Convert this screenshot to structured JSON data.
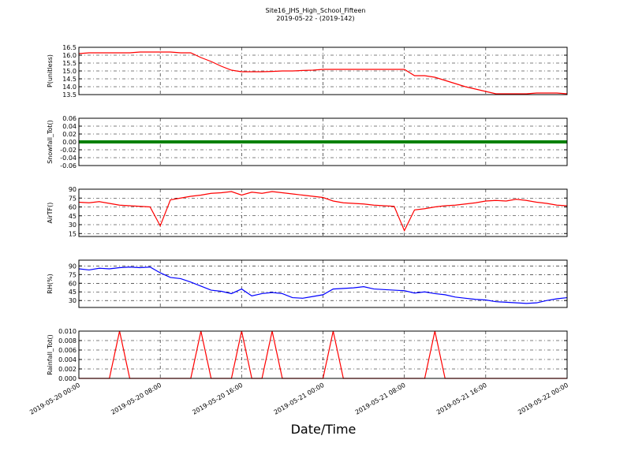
{
  "chart_data": {
    "type": "line",
    "title": "Site16_JHS_High_School_Fifteen",
    "subtitle": "2019-05-22 - (2019-142)",
    "x_label": "Date/Time",
    "grid": true,
    "x": [
      "2019-05-20 00:00",
      "2019-05-20 01:00",
      "2019-05-20 02:00",
      "2019-05-20 03:00",
      "2019-05-20 04:00",
      "2019-05-20 05:00",
      "2019-05-20 06:00",
      "2019-05-20 07:00",
      "2019-05-20 08:00",
      "2019-05-20 09:00",
      "2019-05-20 10:00",
      "2019-05-20 11:00",
      "2019-05-20 12:00",
      "2019-05-20 13:00",
      "2019-05-20 14:00",
      "2019-05-20 15:00",
      "2019-05-20 16:00",
      "2019-05-20 17:00",
      "2019-05-20 18:00",
      "2019-05-20 19:00",
      "2019-05-20 20:00",
      "2019-05-20 21:00",
      "2019-05-20 22:00",
      "2019-05-20 23:00",
      "2019-05-21 00:00",
      "2019-05-21 01:00",
      "2019-05-21 02:00",
      "2019-05-21 03:00",
      "2019-05-21 04:00",
      "2019-05-21 05:00",
      "2019-05-21 06:00",
      "2019-05-21 07:00",
      "2019-05-21 08:00",
      "2019-05-21 09:00",
      "2019-05-21 10:00",
      "2019-05-21 11:00",
      "2019-05-21 12:00",
      "2019-05-21 13:00",
      "2019-05-21 14:00",
      "2019-05-21 15:00",
      "2019-05-21 16:00",
      "2019-05-21 17:00",
      "2019-05-21 18:00",
      "2019-05-21 19:00",
      "2019-05-21 20:00",
      "2019-05-21 21:00",
      "2019-05-21 22:00",
      "2019-05-21 23:00",
      "2019-05-22 00:00"
    ],
    "xticks": [
      "2019-05-20 00:00",
      "2019-05-20 08:00",
      "2019-05-20 16:00",
      "2019-05-21 00:00",
      "2019-05-21 08:00",
      "2019-05-21 16:00",
      "2019-05-22 00:00"
    ],
    "panels": [
      {
        "ylabel": "P(unitless)",
        "color": "#ff0000",
        "ylim": [
          13.5,
          16.5
        ],
        "yticks": [
          13.5,
          {
            "value": 14,
            "label": "14.0"
          },
          14.5,
          {
            "value": 15,
            "label": "15.0"
          },
          15.5,
          {
            "value": 16,
            "label": "16.0"
          },
          16.5
        ],
        "values": [
          16.1,
          16.15,
          16.15,
          16.15,
          16.15,
          16.15,
          16.2,
          16.2,
          16.2,
          16.2,
          16.15,
          16.15,
          15.85,
          15.6,
          15.3,
          15.05,
          14.95,
          14.95,
          14.95,
          14.97,
          15.0,
          15.0,
          15.03,
          15.05,
          15.1,
          15.1,
          15.1,
          15.1,
          15.1,
          15.1,
          15.1,
          15.1,
          15.1,
          14.7,
          14.7,
          14.6,
          14.4,
          14.2,
          14.0,
          13.85,
          13.7,
          13.55,
          13.55,
          13.55,
          13.55,
          13.6,
          13.6,
          13.6,
          13.55
        ]
      },
      {
        "ylabel": "Snowfall_Tot()",
        "color": "#008000",
        "ylim": [
          -0.06,
          0.06
        ],
        "yticks": [
          -0.06,
          -0.04,
          -0.02,
          {
            "value": 0,
            "label": "0.00"
          },
          0.02,
          0.04,
          0.06
        ],
        "values": [
          0,
          0,
          0,
          0,
          0,
          0,
          0,
          0,
          0,
          0,
          0,
          0,
          0,
          0,
          0,
          0,
          0,
          0,
          0,
          0,
          0,
          0,
          0,
          0,
          0,
          0,
          0,
          0,
          0,
          0,
          0,
          0,
          0,
          0,
          0,
          0,
          0,
          0,
          0,
          0,
          0,
          0,
          0,
          0,
          0,
          0,
          0,
          0,
          0
        ]
      },
      {
        "ylabel": "AirTF()",
        "color": "#ff0000",
        "ylim": [
          10,
          90
        ],
        "yticks": [
          15,
          30,
          45,
          60,
          75,
          90
        ],
        "values": [
          68,
          67,
          69,
          66,
          63,
          62,
          61,
          60,
          28,
          72,
          75,
          78,
          80,
          83,
          84,
          86,
          80,
          85,
          83,
          86,
          84,
          82,
          80,
          78,
          76,
          70,
          67,
          66,
          65,
          63,
          62,
          61,
          20,
          55,
          57,
          60,
          62,
          63,
          65,
          67,
          70,
          71,
          70,
          73,
          71,
          68,
          66,
          63,
          62
        ]
      },
      {
        "ylabel": "RH(%)",
        "color": "#0000ff",
        "ylim": [
          18,
          100
        ],
        "yticks": [
          30,
          45,
          60,
          75,
          90
        ],
        "values": [
          85,
          83,
          86,
          85,
          87,
          88,
          87,
          88,
          78,
          70,
          68,
          62,
          55,
          48,
          46,
          42,
          50,
          38,
          42,
          44,
          42,
          35,
          34,
          37,
          40,
          50,
          51,
          52,
          54,
          50,
          49,
          48,
          47,
          43,
          45,
          42,
          40,
          36,
          34,
          32,
          31,
          28,
          27,
          26,
          25,
          26,
          30,
          33,
          35
        ]
      },
      {
        "ylabel": "Rainfall_Tot()",
        "color": "#ff0000",
        "ylim": [
          0,
          0.01
        ],
        "yticks": [
          {
            "value": 0,
            "label": "0.000"
          },
          0.002,
          0.004,
          0.006,
          0.008,
          {
            "value": 0.01,
            "label": "0.010"
          }
        ],
        "values": [
          0,
          0,
          0,
          0,
          0.01,
          0,
          0,
          0,
          0,
          0,
          0,
          0,
          0.01,
          0,
          0,
          0,
          0.01,
          0,
          0,
          0.01,
          0,
          0,
          0,
          0,
          0,
          0.01,
          0,
          0,
          0,
          0,
          0,
          0,
          0,
          0,
          0,
          0.01,
          0,
          0,
          0,
          0,
          0,
          0,
          0,
          0,
          0,
          0,
          0,
          0,
          0
        ]
      }
    ]
  }
}
